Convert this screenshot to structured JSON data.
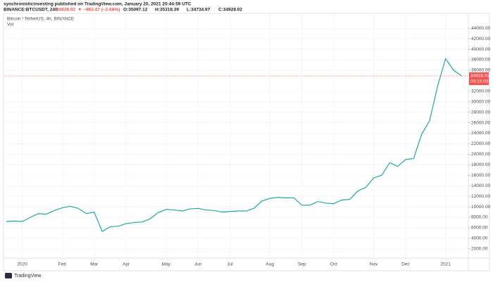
{
  "header": {
    "publisher": "synchronisticinvesting published on TradingView.com, January 20, 2021 20:44:59 UTC",
    "symbol": "BINANCE:BTCUSDT, 240",
    "last": "34928.02",
    "change": "▼ −963.47 (−2.68%)",
    "open": "O:35097.12",
    "high": "H:35318.39",
    "low": "L:34734.97",
    "close": "C:34928.02"
  },
  "footer": {
    "brand": "TradingView"
  },
  "chart_data": {
    "type": "line",
    "title": "Bitcoin / TetherUS, 4h, BINANCE",
    "subtitle": "Vol",
    "categories": [
      null,
      null,
      "2020",
      null,
      null,
      null,
      null,
      "Feb",
      null,
      null,
      null,
      "Mar",
      null,
      null,
      null,
      "Apr",
      null,
      null,
      null,
      null,
      "May",
      null,
      null,
      null,
      "Jun",
      null,
      null,
      null,
      "Jul",
      null,
      null,
      null,
      null,
      "Aug",
      null,
      null,
      null,
      "Sep",
      null,
      null,
      null,
      "Oct",
      null,
      null,
      null,
      null,
      "Nov",
      null,
      null,
      null,
      "Dec",
      null,
      null,
      null,
      null,
      "2021",
      null,
      null
    ],
    "series": [
      {
        "name": "BTCUSDT",
        "color": "#26a69a",
        "values": [
          7200,
          7300,
          7200,
          8000,
          8700,
          8600,
          9300,
          9800,
          10100,
          9700,
          8700,
          9000,
          5300,
          6200,
          6300,
          6800,
          7000,
          7100,
          7700,
          8900,
          9500,
          9400,
          9200,
          9600,
          9700,
          9400,
          9300,
          9000,
          9100,
          9200,
          9200,
          9700,
          11100,
          11600,
          11800,
          11700,
          11700,
          10300,
          10300,
          11000,
          10700,
          10600,
          11300,
          11400,
          13000,
          13700,
          15500,
          16000,
          18400,
          17700,
          19000,
          19200,
          23800,
          26400,
          33000,
          38200,
          36000,
          34928
        ]
      }
    ],
    "last_price": {
      "value": 34928.02,
      "label": "34928.02",
      "countdown": "03:15:03",
      "color": "#ef5350"
    },
    "ylim": [
      500,
      46700
    ],
    "yticks": [
      {
        "value": 2000,
        "label": "2000.00"
      },
      {
        "value": 4000,
        "label": "4000.00"
      },
      {
        "value": 6000,
        "label": "6000.00"
      },
      {
        "value": 8000,
        "label": "8000.00"
      },
      {
        "value": 10000,
        "label": "10000.00"
      },
      {
        "value": 12000,
        "label": "12000.00"
      },
      {
        "value": 14000,
        "label": "14000.00"
      },
      {
        "value": 16000,
        "label": "16000.00"
      },
      {
        "value": 18000,
        "label": "18000.00"
      },
      {
        "value": 20000,
        "label": "20000.00"
      },
      {
        "value": 22000,
        "label": "22000.00"
      },
      {
        "value": 24000,
        "label": "24000.00"
      },
      {
        "value": 26000,
        "label": "26000.00"
      },
      {
        "value": 28000,
        "label": "28000.00"
      },
      {
        "value": 30000,
        "label": "30000.00"
      },
      {
        "value": 32000,
        "label": "32000.00"
      },
      {
        "value": 36000,
        "label": "36000.00"
      },
      {
        "value": 38000,
        "label": "38000.00"
      },
      {
        "value": 40000,
        "label": "40000.00"
      },
      {
        "value": 42000,
        "label": "42000.00"
      },
      {
        "value": 44000,
        "label": "44000.00"
      }
    ],
    "grid": true
  }
}
